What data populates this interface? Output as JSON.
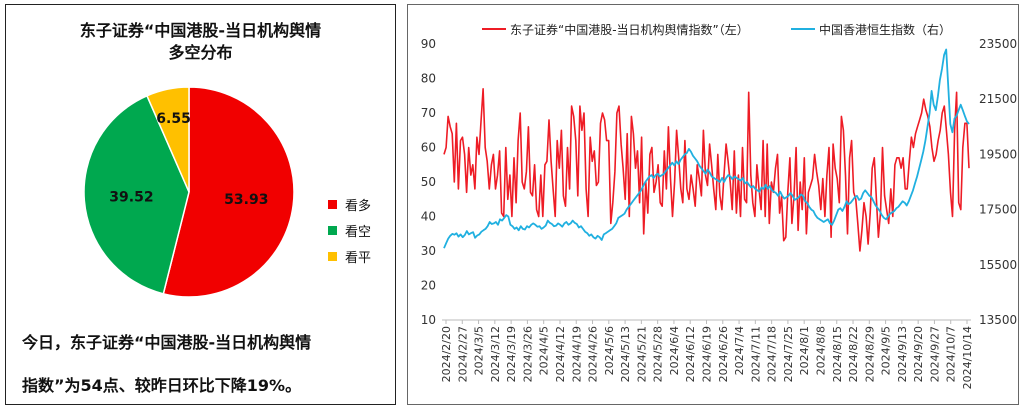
{
  "pie": {
    "title_line1": "东子证券“中国港股-当日机构舆情",
    "title_line2": "多空分布",
    "summary_line1": "今日，东子证券“中国港股-当日机构舆情",
    "summary_line2": "指数”为54点、较昨日环比下降19%。"
  },
  "colors": {
    "bullish": "#f10000",
    "bearish": "#00a84f",
    "neutral": "#ffc000",
    "sentiment_line": "#ee1c25",
    "hsi_line": "#20b0e0"
  },
  "chart_data": [
    {
      "type": "pie",
      "labels": [
        "看多",
        "看空",
        "看平"
      ],
      "values": [
        53.93,
        39.52,
        6.55
      ],
      "value_labels": [
        "53.93",
        "39.52",
        "6.55"
      ]
    },
    {
      "type": "line",
      "legend_placement": "top",
      "grid": false,
      "series": [
        {
          "name": "东子证券“中国港股-当日机构舆情指数”（左）",
          "axis": "left",
          "values": [
            58,
            60,
            69,
            66,
            64,
            50,
            67,
            48,
            62,
            63,
            58,
            47,
            60,
            52,
            55,
            48,
            63,
            58,
            68,
            77,
            60,
            56,
            48,
            55,
            58,
            48,
            52,
            59,
            41,
            40,
            60,
            45,
            52,
            40,
            57,
            44,
            62,
            70,
            50,
            48,
            53,
            66,
            47,
            46,
            55,
            42,
            40,
            52,
            40,
            55,
            56,
            68,
            56,
            48,
            40,
            62,
            54,
            65,
            46,
            43,
            60,
            48,
            72,
            69,
            62,
            46,
            72,
            65,
            70,
            48,
            40,
            63,
            56,
            59,
            49,
            50,
            67,
            70,
            68,
            62,
            62,
            38,
            44,
            53,
            70,
            72,
            61,
            54,
            45,
            64,
            40,
            69,
            64,
            54,
            59,
            44,
            63,
            35,
            50,
            41,
            58,
            60,
            47,
            50,
            55,
            44,
            43,
            59,
            48,
            66,
            51,
            40,
            50,
            65,
            57,
            48,
            44,
            62,
            48,
            45,
            52,
            48,
            43,
            55,
            51,
            46,
            65,
            52,
            49,
            61,
            55,
            48,
            42,
            58,
            46,
            42,
            52,
            61,
            56,
            50,
            42,
            59,
            41,
            52,
            40,
            60,
            45,
            44,
            76,
            52,
            44,
            40,
            55,
            48,
            42,
            62,
            40,
            61,
            38,
            50,
            47,
            54,
            58,
            41,
            46,
            33,
            34,
            47,
            57,
            38,
            46,
            60,
            36,
            50,
            42,
            57,
            35,
            47,
            49,
            51,
            58,
            53,
            49,
            42,
            51,
            40,
            52,
            60,
            34,
            61,
            54,
            51,
            44,
            69,
            65,
            52,
            35,
            57,
            62,
            47,
            45,
            38,
            30,
            36,
            44,
            40,
            32,
            41,
            54,
            57,
            45,
            34,
            41,
            60,
            46,
            42,
            38,
            48,
            40,
            55,
            57,
            57,
            54,
            57,
            48,
            48,
            56,
            63,
            60,
            64,
            66,
            68,
            70,
            74,
            71,
            69,
            66,
            60,
            56,
            58,
            62,
            65,
            70,
            72,
            65,
            58,
            47,
            40,
            65,
            76,
            44,
            42,
            60,
            67,
            67,
            54
          ]
        },
        {
          "name": "中国香港恒生指数（右）",
          "axis": "right",
          "values": [
            16100,
            16280,
            16450,
            16550,
            16620,
            16590,
            16640,
            16520,
            16600,
            16500,
            16580,
            16720,
            16600,
            16650,
            16680,
            16480,
            16560,
            16600,
            16700,
            16750,
            16800,
            16900,
            17050,
            16980,
            17000,
            17050,
            16950,
            17150,
            17100,
            17200,
            17300,
            17250,
            16950,
            16900,
            16800,
            16850,
            16750,
            16900,
            16800,
            16780,
            16900,
            16850,
            16950,
            17000,
            16950,
            16880,
            16900,
            16800,
            16850,
            16920,
            17100,
            17020,
            16980,
            16900,
            16920,
            17000,
            16950,
            16880,
            17000,
            17050,
            16950,
            17000,
            17100,
            17020,
            16980,
            16850,
            16900,
            16800,
            16700,
            16650,
            16550,
            16600,
            16500,
            16450,
            16550,
            16500,
            16400,
            16600,
            16650,
            16700,
            16750,
            16800,
            16900,
            17000,
            17200,
            17250,
            17300,
            17350,
            17500,
            17600,
            17700,
            17800,
            17900,
            18000,
            18100,
            18200,
            18350,
            18500,
            18600,
            18700,
            18750,
            18650,
            18750,
            18800,
            18700,
            18750,
            18800,
            18900,
            19000,
            19100,
            19200,
            19100,
            19250,
            19150,
            19300,
            19400,
            19500,
            19550,
            19700,
            19600,
            19450,
            19350,
            19250,
            19100,
            19000,
            18900,
            18800,
            18950,
            18850,
            18700,
            18650,
            18600,
            18550,
            18500,
            18650,
            18500,
            18650,
            18750,
            18700,
            18600,
            18700,
            18650,
            18600,
            18550,
            18650,
            18450,
            18500,
            18400,
            18300,
            18350,
            18250,
            18200,
            18150,
            18300,
            18250,
            18400,
            18250,
            18350,
            18200,
            18150,
            18100,
            18000,
            18150,
            18000,
            17900,
            17950,
            18000,
            18100,
            18000,
            17850,
            17900,
            17950,
            18050,
            18000,
            17800,
            17750,
            17600,
            17500,
            17450,
            17300,
            17200,
            17150,
            17100,
            17050,
            17100,
            17150,
            17000,
            16950,
            17100,
            17300,
            17500,
            17550,
            17450,
            17600,
            17800,
            17700,
            17750,
            17850,
            17950,
            18000,
            17850,
            17900,
            18100,
            18200,
            18100,
            18000,
            17950,
            17800,
            17650,
            17550,
            17450,
            17300,
            17200,
            17150,
            17250,
            17350,
            17400,
            17450,
            17550,
            17600,
            17700,
            17800,
            17750,
            17650,
            17800,
            18000,
            18200,
            18450,
            18700,
            19000,
            19300,
            19600,
            20000,
            20500,
            21000,
            21800,
            21300,
            21100,
            21600,
            22200,
            22600,
            23100,
            23300,
            22000,
            20600,
            20300,
            20800,
            20900,
            21100,
            21300,
            21100,
            20900,
            20700,
            20600
          ]
        }
      ],
      "x_tick_labels": [
        "2024/2/20",
        "2024/2/27",
        "2024/3/5",
        "2024/3/12",
        "2024/3/19",
        "2024/3/26",
        "2024/4/5",
        "2024/4/12",
        "2024/4/19",
        "2024/4/26",
        "2024/5/6",
        "2024/5/13",
        "2024/5/21",
        "2024/5/28",
        "2024/6/4",
        "2024/6/12",
        "2024/6/19",
        "2024/6/26",
        "2024/7/4",
        "2024/7/11",
        "2024/7/18",
        "2024/7/25",
        "2024/8/1",
        "2024/8/8",
        "2024/8/15",
        "2024/8/22",
        "2024/8/29",
        "2024/9/5",
        "2024/9/13",
        "2024/9/20",
        "2024/9/27",
        "2024/10/7",
        "2024/10/14"
      ],
      "y_left": {
        "min": 10,
        "max": 90,
        "ticks": [
          10,
          20,
          30,
          40,
          50,
          60,
          70,
          80,
          90
        ]
      },
      "y_right": {
        "min": 13500,
        "max": 23500,
        "ticks": [
          13500,
          15500,
          17500,
          19500,
          21500,
          23500
        ]
      }
    }
  ]
}
